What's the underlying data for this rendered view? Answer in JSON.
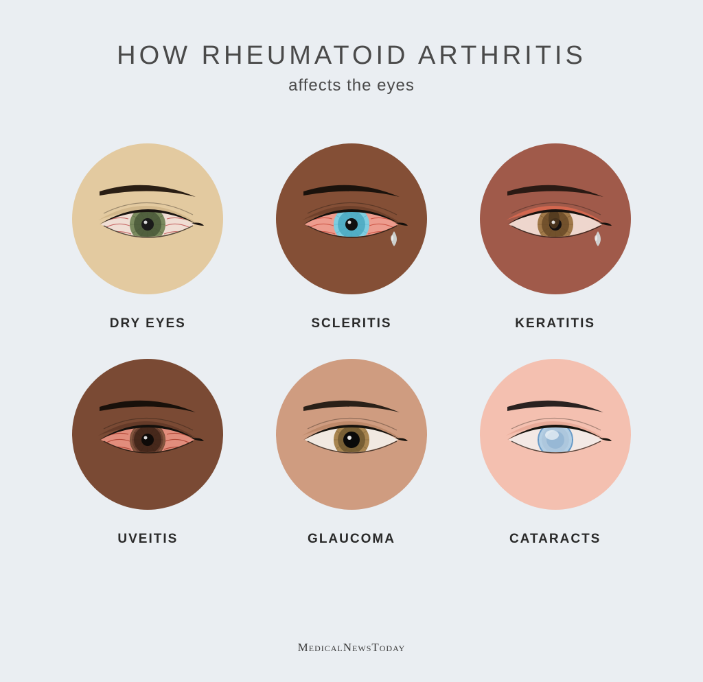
{
  "title": "HOW RHEUMATOID ARTHRITIS",
  "subtitle": "affects the eyes",
  "footer": {
    "brand_a": "Medical",
    "brand_b": "News",
    "brand_c": "Today"
  },
  "background_color": "#eaeef2",
  "title_color": "#4a4a4a",
  "label_color": "#2a2a2a",
  "grid": {
    "columns": 3,
    "circle_diameter": 220,
    "column_gap": 70,
    "row_gap": 40
  },
  "cells": [
    {
      "id": "dry-eyes",
      "label": "DRY EYES",
      "skin_color": "#e3caa0",
      "eyelid_color": "#d0b68a",
      "sclera_color": "#f5efe8",
      "sclera_tint": "#e8c0b0",
      "iris_color": "#7a8a5e",
      "iris_inner": "#4a5838",
      "pupil_color": "#1a1a1a",
      "brow_color": "#2a1e14",
      "liner_color": "#1a1410",
      "veins": true,
      "vein_color": "#b84040",
      "tear": false,
      "cloudy": false
    },
    {
      "id": "scleritis",
      "label": "SCLERITIS",
      "skin_color": "#844f36",
      "eyelid_color": "#6d3f2a",
      "sclera_color": "#f0a89a",
      "sclera_tint": "#e88878",
      "iris_color": "#7ecde0",
      "iris_inner": "#4aa8c0",
      "pupil_color": "#101010",
      "brow_color": "#1a120c",
      "liner_color": "#14100c",
      "veins": true,
      "vein_color": "#c04030",
      "tear": true,
      "tear_color": "#d8e5e8",
      "cloudy": false
    },
    {
      "id": "keratitis",
      "label": "KERATITIS",
      "skin_color": "#a05a4a",
      "eyelid_color": "#d86850",
      "sclera_color": "#f2ded6",
      "sclera_tint": "#e8c8be",
      "iris_color": "#a07848",
      "iris_inner": "#6a4a28",
      "pupil_color": "#141010",
      "brow_color": "#2a1a14",
      "liner_color": "#18120e",
      "veins": false,
      "tear": true,
      "tear_color": "#d8e5e8",
      "cloudy": false,
      "keratitis_spot": true,
      "spot_color": "#50381e"
    },
    {
      "id": "uveitis",
      "label": "UVEITIS",
      "skin_color": "#7a4a34",
      "eyelid_color": "#633a28",
      "sclera_color": "#e89888",
      "sclera_tint": "#d87868",
      "iris_color": "#6a4030",
      "iris_inner": "#402418",
      "pupil_color": "#0e0a08",
      "brow_color": "#18100a",
      "liner_color": "#14100c",
      "veins": true,
      "vein_color": "#a03020",
      "tear": false,
      "cloudy": false,
      "iris_ring": true,
      "ring_color": "#8a5a42"
    },
    {
      "id": "glaucoma",
      "label": "GLAUCOMA",
      "skin_color": "#cf9c80",
      "eyelid_color": "#bb8868",
      "sclera_color": "#f5f0ea",
      "sclera_tint": "#eadcd0",
      "iris_color": "#a88550",
      "iris_inner": "#705830",
      "pupil_color": "#0a0a0a",
      "brow_color": "#2a2018",
      "liner_color": "#18140e",
      "veins": false,
      "tear": false,
      "cloudy": false,
      "large_pupil": true,
      "pupil_highlight": "#e8e8e8"
    },
    {
      "id": "cataracts",
      "label": "CATARACTS",
      "skin_color": "#f4c0b0",
      "eyelid_color": "#e8aa98",
      "sclera_color": "#f6f2f0",
      "sclera_tint": "#eedad0",
      "iris_color": "#6a9cc8",
      "iris_inner": "#4878a8",
      "pupil_color": "#88aed0",
      "brow_color": "#2a2220",
      "liner_color": "#18140e",
      "veins": false,
      "tear": false,
      "cloudy": true,
      "cloud_color": "#cde0ee"
    }
  ]
}
